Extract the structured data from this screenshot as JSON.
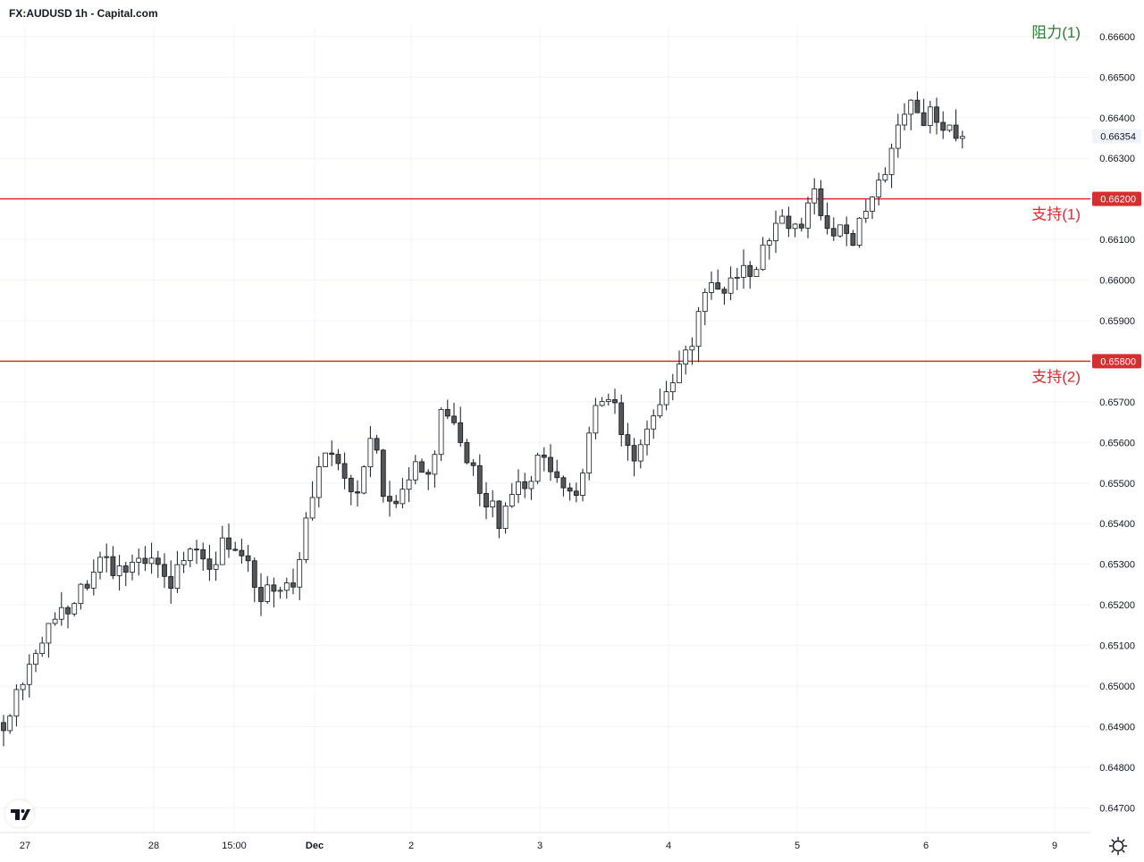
{
  "title": "FX:AUDUSD 1h - Capital.com",
  "colors": {
    "grid": "#f0f3fa",
    "axis_text": "#131722",
    "candle_up_fill": "#ffffff",
    "candle_down_fill": "#555555",
    "candle_outline": "#131722",
    "support_line": "#d62f2f",
    "resistance_label": "#2e7d32",
    "price_tag_current": "#f0f3fa"
  },
  "chart_data": {
    "type": "candlestick",
    "symbol": "FX:AUDUSD",
    "interval": "1h",
    "ylim": [
      0.6465,
      0.6669
    ],
    "y_ticks": [
      "0.66600",
      "0.66500",
      "0.66400",
      "0.66300",
      "0.66100",
      "0.66000",
      "0.65900",
      "0.65700",
      "0.65600",
      "0.65500",
      "0.65400",
      "0.65300",
      "0.65200",
      "0.65100",
      "0.65000",
      "0.64900",
      "0.64800",
      "0.64700"
    ],
    "x_ticks": [
      "27",
      "28",
      "15:00",
      "Dec",
      "2",
      "3",
      "4",
      "5",
      "6",
      "9"
    ],
    "current_price": "0.66354",
    "levels": [
      {
        "label": "支持(1)",
        "price": "0.66200",
        "value": 0.662,
        "kind": "support"
      },
      {
        "label": "支持(2)",
        "price": "0.65800",
        "value": 0.658,
        "kind": "support"
      },
      {
        "label": "阻力(1)",
        "value": 0.666,
        "kind": "resistance"
      }
    ],
    "path": [
      [
        0.6491,
        0.6492
      ],
      [
        0.6503,
        0.65
      ],
      [
        0.6509,
        0.6513
      ],
      [
        0.6516,
        0.6516
      ],
      [
        0.6521,
        0.6521
      ],
      [
        0.6532,
        0.6532
      ],
      [
        0.6536,
        0.653
      ],
      [
        0.6535,
        0.6531
      ],
      [
        0.6532,
        0.6529
      ],
      [
        0.6525,
        0.6526
      ],
      [
        0.6532,
        0.6533
      ],
      [
        0.653,
        0.6529
      ],
      [
        0.6532,
        0.6536
      ],
      [
        0.6534,
        0.653
      ],
      [
        0.6534,
        0.6522
      ],
      [
        0.6519,
        0.6522
      ],
      [
        0.6526,
        0.6529
      ],
      [
        0.654,
        0.6554
      ],
      [
        0.6558,
        0.6558
      ],
      [
        0.6552,
        0.6547
      ],
      [
        0.6555,
        0.656
      ],
      [
        0.6548,
        0.6542
      ],
      [
        0.6553,
        0.6552
      ],
      [
        0.6552,
        0.6553
      ],
      [
        0.6566,
        0.657
      ],
      [
        0.656,
        0.6558
      ],
      [
        0.6553,
        0.6545
      ],
      [
        0.6541,
        0.6541
      ],
      [
        0.6544,
        0.6549
      ],
      [
        0.6554,
        0.6556
      ],
      [
        0.655,
        0.655
      ],
      [
        0.6545,
        0.6543
      ],
      [
        0.6558,
        0.657
      ],
      [
        0.6567,
        0.657
      ],
      [
        0.6561,
        0.6555
      ],
      [
        0.6563,
        0.6564
      ],
      [
        0.6569,
        0.6575
      ],
      [
        0.6584,
        0.6581
      ],
      [
        0.6592,
        0.6597
      ],
      [
        0.6592,
        0.6596
      ],
      [
        0.6602,
        0.6601
      ],
      [
        0.66,
        0.6605
      ],
      [
        0.6613,
        0.6618
      ],
      [
        0.661,
        0.6614
      ],
      [
        0.662,
        0.662
      ],
      [
        0.6616,
        0.6612
      ],
      [
        0.6608,
        0.661
      ],
      [
        0.6614,
        0.662
      ],
      [
        0.6625,
        0.663
      ],
      [
        0.6633,
        0.6642
      ],
      [
        0.6647,
        0.664
      ],
      [
        0.6639,
        0.6639
      ],
      [
        0.6632,
        0.6635
      ]
    ]
  }
}
